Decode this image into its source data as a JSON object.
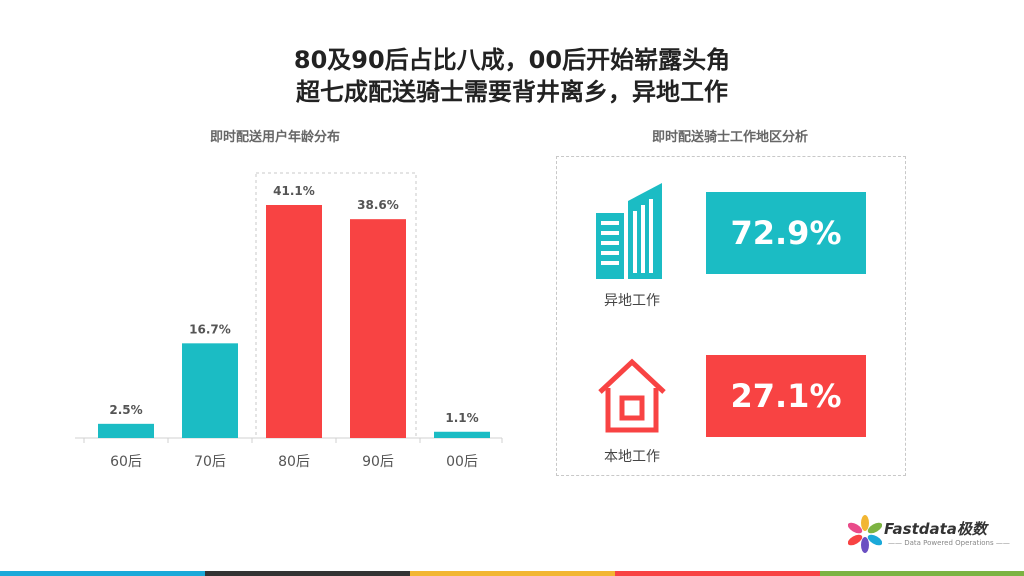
{
  "title_line1": "80及90后占比八成，00后开始崭露头角",
  "title_line2": "超七成配送骑士需要背井离乡，异地工作",
  "colors": {
    "teal": "#1bbcc4",
    "red": "#f84343",
    "axis": "#d0d0d0",
    "footer": [
      "#1ba9d9",
      "#333333",
      "#f2b632",
      "#f84343",
      "#7cb342"
    ]
  },
  "chart_data": [
    {
      "type": "bar",
      "title": "即时配送用户年龄分布",
      "categories": [
        "60后",
        "70后",
        "80后",
        "90后",
        "00后"
      ],
      "values": [
        2.5,
        16.7,
        41.1,
        38.6,
        1.1
      ],
      "value_labels": [
        "2.5%",
        "16.7%",
        "41.1%",
        "38.6%",
        "1.1%"
      ],
      "bar_colors": [
        "teal",
        "teal",
        "red",
        "red",
        "teal"
      ],
      "highlight_categories": [
        "80后",
        "90后"
      ],
      "ylim": [
        0,
        41.1
      ],
      "grid": false,
      "legend": "none"
    },
    {
      "type": "table",
      "title": "即时配送骑士工作地区分析",
      "rows": [
        {
          "label": "异地工作",
          "value": 72.9,
          "value_label": "72.9%",
          "color": "teal",
          "icon": "building-icon"
        },
        {
          "label": "本地工作",
          "value": 27.1,
          "value_label": "27.1%",
          "color": "red",
          "icon": "house-icon"
        }
      ]
    }
  ],
  "logo": {
    "name": "Fastdata极数",
    "tagline": "—— Data Powered Operations ——",
    "icon": "flower-logo-icon"
  }
}
